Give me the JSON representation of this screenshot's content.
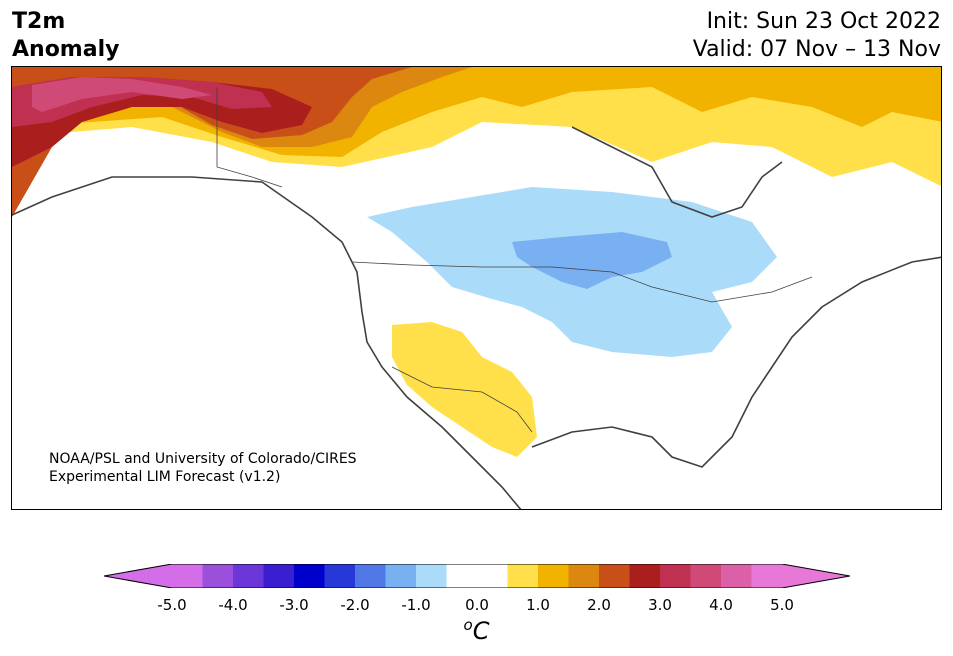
{
  "title": {
    "left_line1": "T2m",
    "left_line2": "Anomaly",
    "right_line1": "Init: Sun 23 Oct 2022",
    "right_line2": "Valid: 07 Nov – 13 Nov"
  },
  "credit": {
    "line1": "NOAA/PSL and University of Colorado/CIRES",
    "line2": "Experimental LIM Forecast (v1.2)"
  },
  "colorbar": {
    "unit_main": "C",
    "unit_sup": "o",
    "ticks": [
      "-5.0",
      "-4.0",
      "-3.0",
      "-2.0",
      "-1.0",
      "0.0",
      "1.0",
      "2.0",
      "3.0",
      "4.0",
      "5.0"
    ],
    "colors": [
      "#d36ee8",
      "#9b50dc",
      "#6b37d9",
      "#3a1fd0",
      "#0000cc",
      "#2638d8",
      "#4f78e6",
      "#78b0f2",
      "#aadcfa",
      "#ffffff",
      "#ffffff",
      "#ffe04a",
      "#f2b200",
      "#dc8710",
      "#c85018",
      "#aa1e1e",
      "#c03050",
      "#d04a78",
      "#dc60a8",
      "#e878d8"
    ],
    "under_color": "#d36ee8",
    "over_color": "#e878d8"
  },
  "map": {
    "colors": {
      "light_blue": "#aadcfa",
      "mid_blue": "#78b0f2",
      "yellow": "#ffe04a",
      "gold": "#f2b200",
      "orange": "#dc8710",
      "dark_orange": "#c85018",
      "red": "#aa1e1e",
      "crimson": "#c03050",
      "pink": "#d04a78",
      "coast": "#404040"
    }
  }
}
